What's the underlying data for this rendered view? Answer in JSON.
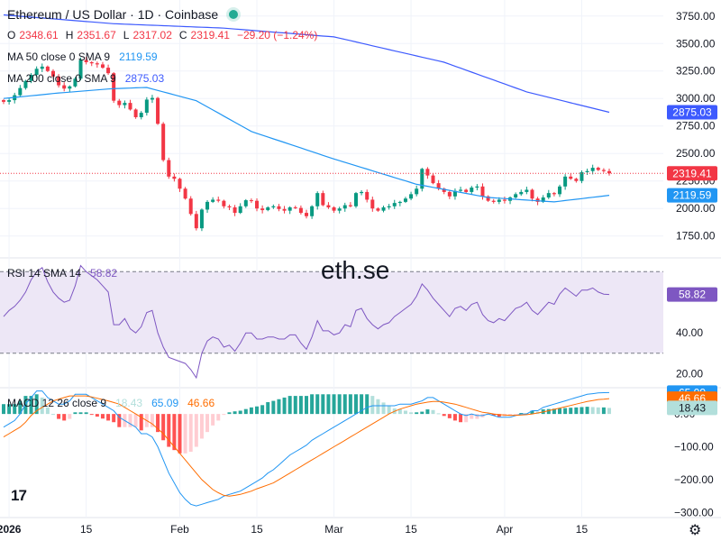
{
  "header": {
    "title": "Ethereum / US Dollar · 1D · Coinbase",
    "ohlc": [
      {
        "key": "O",
        "val": "2348.61"
      },
      {
        "key": "H",
        "val": "2351.67"
      },
      {
        "key": "L",
        "val": "2317.02"
      },
      {
        "key": "C",
        "val": "2319.41"
      }
    ],
    "change": "−29.20 (−1.24%)"
  },
  "indicators": {
    "ma50": {
      "label": "MA 50 close 0 SMA 9",
      "value": "2119.59"
    },
    "ma200": {
      "label": "MA 200 close 0 SMA 9",
      "value": "2875.03"
    },
    "rsi": {
      "label": "RSI 14 SMA 14",
      "value": "58.82"
    },
    "macd": {
      "label": "MACD 12 26 close 9",
      "hist": "18.43",
      "macd": "65.09",
      "signal": "46.66"
    }
  },
  "watermark": "eth.se",
  "logo": "17",
  "colors": {
    "up": "#089981",
    "down": "#f23645",
    "ma50": "#2196f3",
    "ma200": "#3d5afe",
    "rsi_line": "#7e57c2",
    "rsi_band": "#ede7f6",
    "macd_line": "#2196f3",
    "signal_line": "#ff6d00",
    "hist_up_strong": "#26a69a",
    "hist_up_weak": "#b2dfdb",
    "hist_down_strong": "#ff5252",
    "hist_down_weak": "#ffcdd2",
    "grid": "#f0f3fa",
    "text": "#131722"
  },
  "chart_data": [
    {
      "type": "candlestick",
      "title": "Ethereum / US Dollar · 1D · Coinbase",
      "y_ticks": [
        1750,
        2000,
        2250,
        2500,
        2750,
        3000,
        3250,
        3500,
        3750
      ],
      "ylim": [
        1600,
        3830
      ],
      "x_tick_labels": [
        "2026",
        "15",
        "Feb",
        "15",
        "Mar",
        "15",
        "Apr",
        "15"
      ],
      "x_ticks_dates": [
        "2026-01-01",
        "2026-01-15",
        "2026-02-01",
        "2026-02-15",
        "2026-03-01",
        "2026-03-15",
        "2026-04-01",
        "2026-04-15"
      ],
      "first_candle_date": "2025-12-31",
      "last_candle_date": "2026-04-16",
      "closes": [
        2970,
        2985,
        3030,
        3095,
        3160,
        3215,
        3270,
        3290,
        3250,
        3200,
        3120,
        3090,
        3110,
        3180,
        3350,
        3330,
        3320,
        3310,
        3280,
        3230,
        2980,
        2940,
        2960,
        2900,
        2830,
        2870,
        2990,
        3005,
        2770,
        2440,
        2290,
        2270,
        2180,
        2090,
        1950,
        1820,
        1990,
        2060,
        2080,
        2070,
        2020,
        2010,
        1960,
        2020,
        2075,
        2070,
        2000,
        1985,
        2010,
        2020,
        1995,
        1980,
        2010,
        2005,
        1960,
        1930,
        2020,
        2140,
        2030,
        2010,
        1980,
        2000,
        2030,
        2020,
        2140,
        2150,
        2080,
        2000,
        1980,
        2010,
        2020,
        2050,
        2060,
        2090,
        2130,
        2180,
        2360,
        2300,
        2230,
        2180,
        2150,
        2110,
        2160,
        2170,
        2150,
        2190,
        2200,
        2110,
        2070,
        2060,
        2080,
        2070,
        2100,
        2130,
        2150,
        2170,
        2090,
        2060,
        2100,
        2140,
        2130,
        2200,
        2290,
        2270,
        2250,
        2330,
        2340,
        2370,
        2350,
        2340,
        2319.41
      ],
      "series": [
        {
          "name": "MA 50 close 0 SMA 9",
          "last": 2119.59,
          "points": [
            [
              0,
              3000
            ],
            [
              10,
              3050
            ],
            [
              20,
              3090
            ],
            [
              26,
              3100
            ],
            [
              35,
              2980
            ],
            [
              45,
              2700
            ],
            [
              60,
              2450
            ],
            [
              75,
              2220
            ],
            [
              88,
              2100
            ],
            [
              100,
              2060
            ],
            [
              110,
              2119.59
            ]
          ]
        },
        {
          "name": "MA 200 close 0 SMA 9",
          "last": 2875.03,
          "points": [
            [
              0,
              3760
            ],
            [
              20,
              3680
            ],
            [
              40,
              3640
            ],
            [
              60,
              3560
            ],
            [
              80,
              3330
            ],
            [
              95,
              3060
            ],
            [
              110,
              2875.03
            ]
          ]
        }
      ],
      "last_price": 2319.41
    },
    {
      "type": "line",
      "title": "RSI 14 SMA 14",
      "y_ticks": [
        20,
        40,
        60
      ],
      "bands": [
        30,
        70
      ],
      "ylim": [
        14,
        75
      ],
      "values": [
        48,
        51,
        53,
        56,
        60,
        66,
        70,
        72,
        65,
        60,
        57,
        55,
        56,
        63,
        73,
        70,
        68,
        66,
        63,
        60,
        44,
        44,
        47,
        42,
        40,
        43,
        50,
        51,
        40,
        33,
        28,
        27,
        26,
        25,
        22,
        18,
        30,
        36,
        38,
        37,
        33,
        34,
        31,
        35,
        40,
        40,
        37,
        37,
        38,
        38,
        37,
        37,
        39,
        39,
        35,
        32,
        38,
        46,
        41,
        41,
        39,
        40,
        44,
        43,
        51,
        52,
        47,
        44,
        42,
        44,
        45,
        48,
        50,
        52,
        54,
        58,
        64,
        61,
        57,
        54,
        51,
        48,
        52,
        53,
        51,
        54,
        55,
        49,
        46,
        45,
        47,
        46,
        49,
        52,
        53,
        55,
        51,
        49,
        52,
        55,
        54,
        59,
        62,
        60,
        58,
        61,
        61,
        62,
        60,
        59,
        58.82
      ],
      "last": 58.82
    },
    {
      "type": "bar+line",
      "title": "MACD 12 26 close 9",
      "y_ticks": [
        -300,
        -200,
        -100,
        0
      ],
      "ylim": [
        -310,
        80
      ],
      "macd": [
        -40,
        -30,
        -20,
        0,
        30,
        50,
        70,
        70,
        50,
        40,
        30,
        30,
        40,
        60,
        60,
        60,
        50,
        40,
        30,
        20,
        10,
        -10,
        -20,
        -30,
        -40,
        -60,
        -60,
        -70,
        -100,
        -140,
        -180,
        -210,
        -240,
        -260,
        -275,
        -280,
        -275,
        -270,
        -265,
        -260,
        -250,
        -245,
        -240,
        -235,
        -225,
        -215,
        -205,
        -195,
        -180,
        -170,
        -155,
        -140,
        -125,
        -115,
        -105,
        -95,
        -80,
        -70,
        -60,
        -50,
        -40,
        -30,
        -20,
        -10,
        0,
        10,
        20,
        25,
        25,
        25,
        25,
        25,
        30,
        30,
        30,
        35,
        40,
        50,
        50,
        40,
        30,
        20,
        10,
        0,
        -5,
        0,
        -5,
        -5,
        0,
        -5,
        -10,
        -10,
        -10,
        -5,
        0,
        0,
        10,
        10,
        20,
        25,
        30,
        35,
        40,
        45,
        50,
        55,
        60,
        62,
        64,
        65,
        65.09
      ],
      "signal": [
        -70,
        -60,
        -50,
        -40,
        -25,
        -5,
        10,
        20,
        30,
        40,
        45,
        50,
        55,
        55,
        55,
        55,
        52,
        48,
        44,
        40,
        35,
        30,
        20,
        10,
        0,
        -10,
        -20,
        -30,
        -45,
        -60,
        -80,
        -100,
        -120,
        -140,
        -160,
        -180,
        -200,
        -215,
        -230,
        -240,
        -248,
        -250,
        -248,
        -245,
        -240,
        -235,
        -228,
        -222,
        -216,
        -210,
        -200,
        -190,
        -180,
        -170,
        -160,
        -150,
        -140,
        -130,
        -120,
        -110,
        -100,
        -90,
        -80,
        -70,
        -60,
        -50,
        -40,
        -30,
        -20,
        -10,
        0,
        8,
        15,
        20,
        25,
        30,
        33,
        36,
        38,
        38,
        36,
        33,
        30,
        25,
        20,
        15,
        10,
        5,
        3,
        0,
        -2,
        -3,
        -4,
        -4,
        -3,
        -2,
        0,
        3,
        6,
        10,
        14,
        18,
        22,
        26,
        30,
        34,
        38,
        41,
        44,
        45,
        46.66
      ],
      "histogram_last": 18.43,
      "macd_last": 65.09,
      "signal_last": 46.66
    }
  ]
}
